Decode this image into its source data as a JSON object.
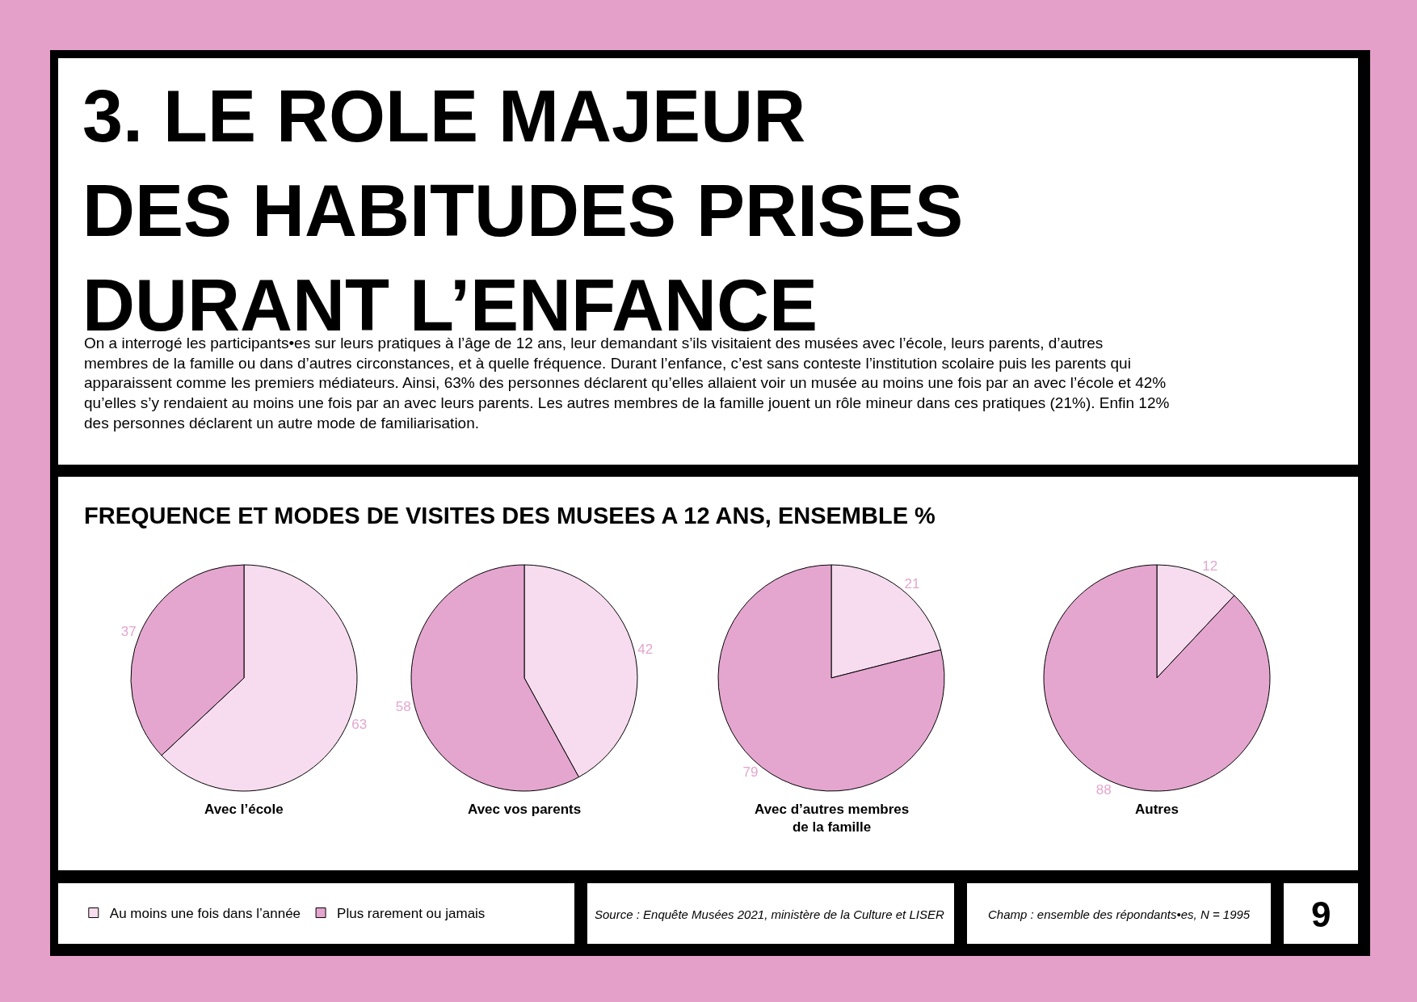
{
  "chart_data": [
    {
      "type": "other",
      "title": "3. LE ROLE MAJEUR DES HABITUDES PRISES DURANT L’ENFANCE",
      "subtitle": "On a interrogé les participants•es sur leurs pratiques à l’âge de 12 ans, leur demandant s’ils visitaient des musées avec l’école, leurs parents, d’autres membres de la famille ou dans d’autres circonstances, et à quelle fréquence. Durant l’enfance, c’est sans conteste l’institution scolaire puis les parents qui apparaissent comme les premiers médiateurs. Ainsi, 63% des personnes déclarent qu’elles allaient voir un musée au moins une fois par an avec l’école et 42% qu’elles s’y rendaient au moins une fois par an avec leurs parents. Les autres membres de la famille jouent un rôle mineur dans ces pratiques (21%). Enfin 12% des personnes déclarent un autre mode de familiarisation.",
      "annotations": [
        "FREQUENCE ET MODES DE VISITES DES MUSEES A 12 ANS, ENSEMBLE %",
        "Source : Enquête Musées 2021, ministère de la Culture et LISER",
        "Champ : ensemble des répondants•es, N = 1995",
        "9"
      ]
    },
    {
      "type": "pie",
      "xlabel": "Avec l’école",
      "categories": [
        "Au moins une fois dans l’année",
        "Plus rarement ou jamais"
      ],
      "values": [
        63,
        37
      ],
      "colors": [
        "#f6dcee",
        "#e4a6cf"
      ],
      "data_labels": true,
      "legend": "bottom"
    },
    {
      "type": "pie",
      "xlabel": "Avec vos parents",
      "categories": [
        null,
        null
      ],
      "values": [
        42,
        58
      ],
      "colors": [
        "#f6dcee",
        "#e4a6cf"
      ],
      "data_labels": true
    },
    {
      "type": "pie",
      "xlabel": "Avec d’autres membres de la famille",
      "categories": [
        null,
        null
      ],
      "values": [
        21,
        79
      ],
      "colors": [
        "#f6dcee",
        "#e4a6cf"
      ],
      "data_labels": true
    },
    {
      "type": "pie",
      "xlabel": "Autres",
      "categories": [
        null,
        null
      ],
      "values": [
        12,
        88
      ],
      "colors": [
        "#f6dcee",
        "#e4a6cf"
      ],
      "data_labels": true
    }
  ]
}
